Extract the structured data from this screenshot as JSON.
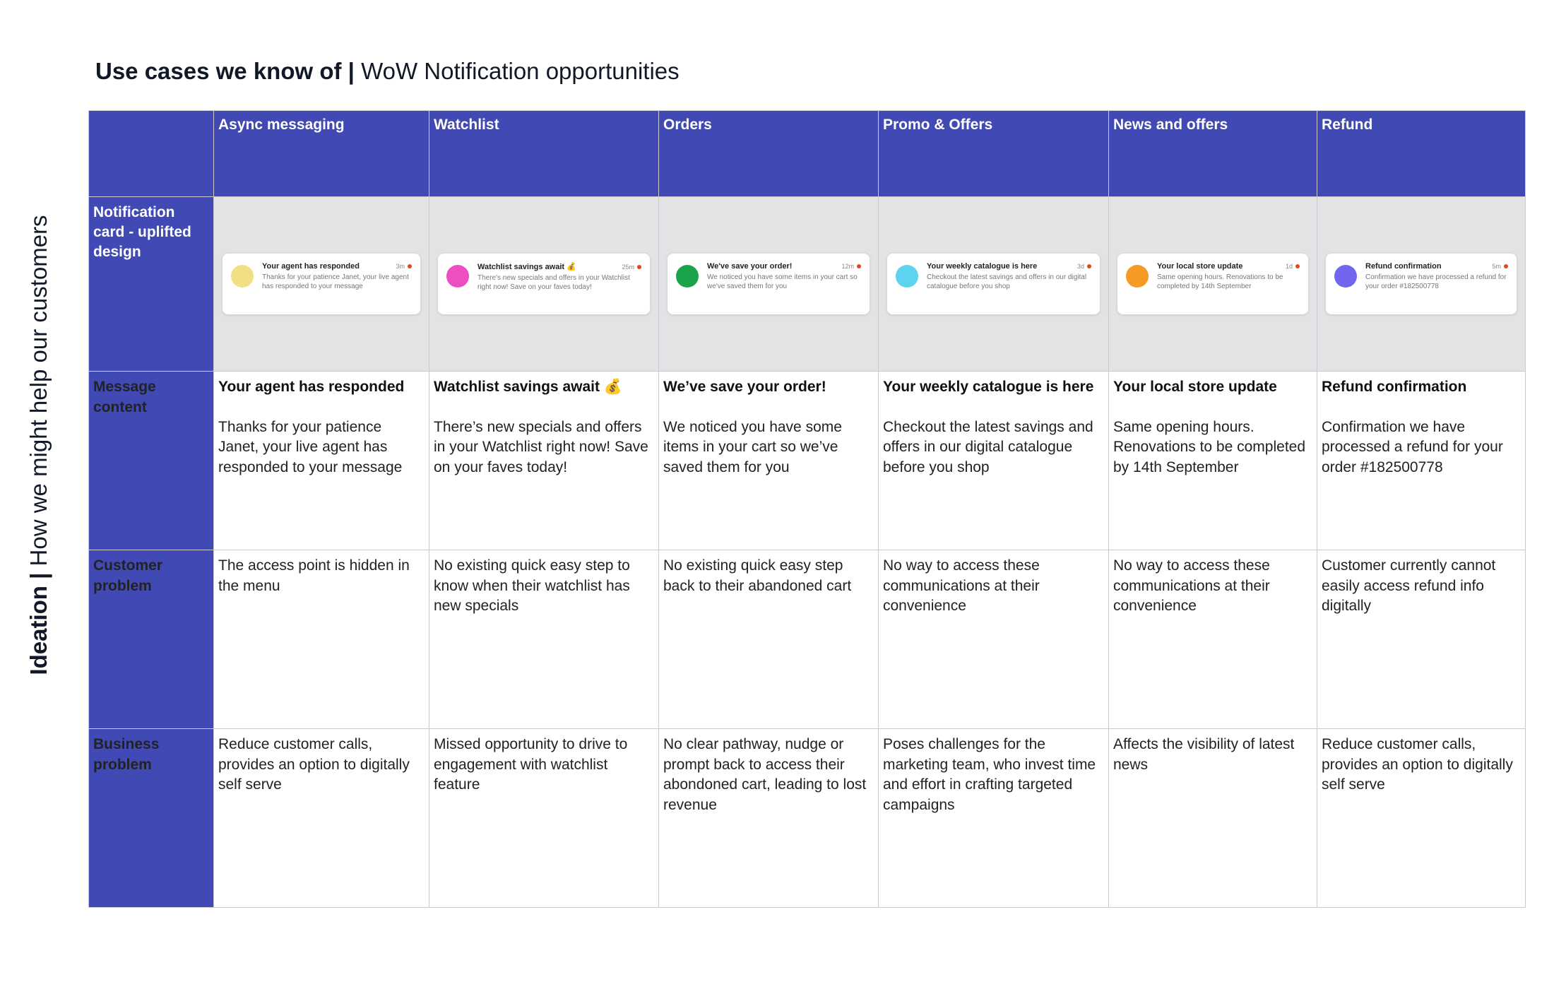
{
  "title": {
    "bold": "Use cases we know of |",
    "regular": "WoW Notification opportunities"
  },
  "side_label": {
    "bold": "Ideation |",
    "regular": "How  we might help our customers"
  },
  "colors": {
    "header_bg": "#4149b4",
    "card_row_bg": "#e3e3e6",
    "unread_dot": "#e4451e"
  },
  "columns": [
    {
      "header": "Async messaging",
      "card": {
        "avatar_color": "#f1de85",
        "title": "Your agent has responded",
        "time": "3m",
        "body": "Thanks for your patience Janet, your live agent has responded to your message"
      },
      "message_title": "Your agent has responded",
      "message_body": "Thanks for your patience Janet, your live agent has responded to your message",
      "customer_problem": "The access point is hidden in the menu",
      "business_problem": "Reduce customer calls, provides an option to digitally self serve"
    },
    {
      "header": "Watchlist",
      "card": {
        "avatar_color": "#ee4fc0",
        "title": "Watchlist savings await 💰",
        "time": "25m",
        "body": "There's new specials and offers in your Watchlist right now! Save on your faves today!"
      },
      "message_title": "Watchlist savings await 💰",
      "message_body": "There’s new specials and offers in your Watchlist right now! Save on your faves today!",
      "customer_problem": "No existing quick easy step to know when their watchlist has new specials",
      "business_problem": "Missed opportunity to drive to engagement with watchlist feature"
    },
    {
      "header": "Orders",
      "card": {
        "avatar_color": "#1aa34a",
        "title": "We've save your order!",
        "time": "12m",
        "body": "We noticed you have some items in your cart so we've saved them for you"
      },
      "message_title": "We’ve save your order!",
      "message_body": "We noticed you have some items in your cart so we’ve saved them for you",
      "customer_problem": "No existing quick easy step back to their abandoned cart",
      "business_problem": "No clear pathway, nudge or prompt back to access their abondoned cart, leading to lost revenue"
    },
    {
      "header": "Promo & Offers",
      "card": {
        "avatar_color": "#5ed3f0",
        "title": "Your weekly catalogue is here",
        "time": "3d",
        "body": "Checkout the latest savings and offers in our digital catalogue before you shop"
      },
      "message_title": "Your weekly catalogue is here",
      "message_body": "Checkout the latest savings and offers in our digital catalogue before you shop",
      "customer_problem": "No way to access these communications at their convenience",
      "business_problem": "Poses challenges for the marketing team, who invest time and effort in crafting targeted campaigns"
    },
    {
      "header": "News and offers",
      "card": {
        "avatar_color": "#f59a23",
        "title": "Your local store update",
        "time": "1d",
        "body": "Same opening hours. Renovations to be completed by 14th September"
      },
      "message_title": "Your local store update",
      "message_body": "Same opening hours. Renovations to be completed by 14th September",
      "customer_problem": "No way to access these communications at their convenience",
      "business_problem": "Affects the visibility of latest news"
    },
    {
      "header": "Refund",
      "card": {
        "avatar_color": "#7266ee",
        "title": "Refund confirmation",
        "time": "5m",
        "body": "Confirmation we have processed a refund for your order #182500778"
      },
      "message_title": "Refund confirmation",
      "message_body": "Confirmation we have processed a refund for your order #182500778",
      "customer_problem": "Customer currently cannot easily access refund info digitally",
      "business_problem": "Reduce customer calls, provides an option to digitally self serve"
    }
  ],
  "row_labels": {
    "notification_card": "Notification card - uplifted design",
    "message_content": "Message content",
    "customer_problem": "Customer problem",
    "business_problem": "Business problem"
  }
}
